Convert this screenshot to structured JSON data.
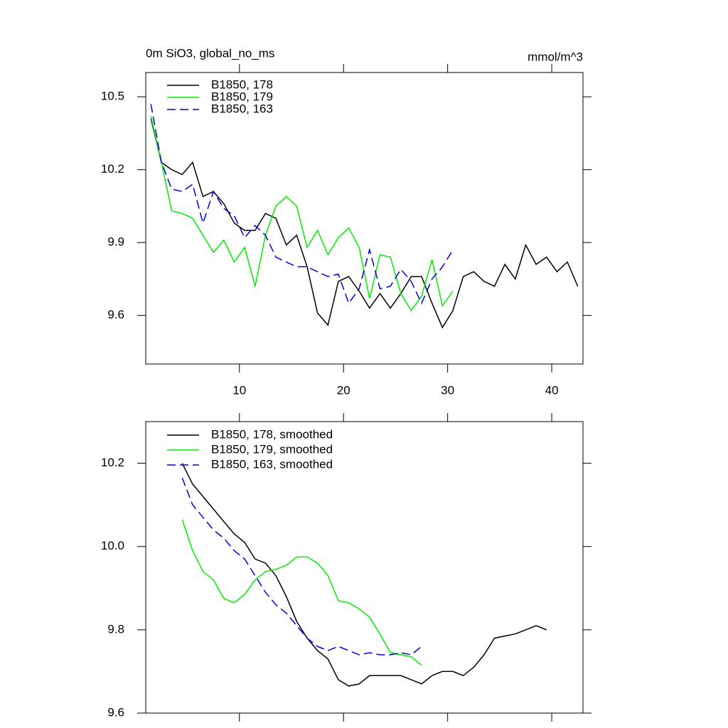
{
  "chart_data": [
    {
      "type": "line",
      "title": "0m SiO3, global_no_ms",
      "units": "mmol/m^3",
      "xlim": [
        1,
        43
      ],
      "xticks": [
        10,
        20,
        30,
        40
      ],
      "ylim": [
        9.4,
        10.6
      ],
      "yticks": [
        9.6,
        9.9,
        10.2,
        10.5
      ],
      "series": [
        {
          "name": "B1850, 178",
          "color": "#000000",
          "dash": false,
          "x": [
            1.5,
            2.5,
            3.5,
            4.5,
            5.5,
            6.5,
            7.5,
            8.5,
            9.5,
            10.5,
            11.5,
            12.5,
            13.5,
            14.5,
            15.5,
            16.5,
            17.5,
            18.5,
            19.5,
            20.5,
            21.5,
            22.5,
            23.5,
            24.5,
            25.5,
            26.5,
            27.5,
            28.5,
            29.5,
            30.5,
            31.5,
            32.5,
            33.5,
            34.5,
            35.5,
            36.5,
            37.5,
            38.5,
            39.5,
            40.5,
            41.5,
            42.5
          ],
          "values": [
            10.41,
            10.23,
            10.2,
            10.18,
            10.23,
            10.09,
            10.11,
            10.06,
            9.98,
            9.95,
            9.95,
            10.02,
            10.0,
            9.89,
            9.93,
            9.8,
            9.61,
            9.56,
            9.74,
            9.76,
            9.7,
            9.63,
            9.69,
            9.63,
            9.69,
            9.76,
            9.76,
            9.65,
            9.55,
            9.62,
            9.76,
            9.78,
            9.74,
            9.72,
            9.81,
            9.75,
            9.89,
            9.81,
            9.84,
            9.78,
            9.82,
            9.72
          ]
        },
        {
          "name": "B1850, 179",
          "color": "#00ee00",
          "dash": false,
          "x": [
            1.5,
            2.5,
            3.5,
            4.5,
            5.5,
            6.5,
            7.5,
            8.5,
            9.5,
            10.5,
            11.5,
            12.5,
            13.5,
            14.5,
            15.5,
            16.5,
            17.5,
            18.5,
            19.5,
            20.5,
            21.5,
            22.5,
            23.5,
            24.5,
            25.5,
            26.5,
            27.5,
            28.5,
            29.5,
            30.5
          ],
          "values": [
            10.42,
            10.23,
            10.03,
            10.02,
            10.0,
            9.93,
            9.86,
            9.91,
            9.82,
            9.88,
            9.72,
            9.93,
            10.05,
            10.09,
            10.05,
            9.88,
            9.95,
            9.85,
            9.92,
            9.96,
            9.88,
            9.67,
            9.85,
            9.84,
            9.69,
            9.62,
            9.68,
            9.83,
            9.64,
            9.7
          ]
        },
        {
          "name": "B1850, 163",
          "color": "#0000dd",
          "dash": true,
          "x": [
            1.5,
            2.5,
            3.5,
            4.5,
            5.5,
            6.5,
            7.5,
            8.5,
            9.5,
            10.5,
            11.5,
            12.5,
            13.5,
            14.5,
            15.5,
            16.5,
            17.5,
            18.5,
            19.5,
            20.5,
            21.5,
            22.5,
            23.5,
            24.5,
            25.5,
            26.5,
            27.5,
            28.5,
            29.5,
            30.5
          ],
          "values": [
            10.47,
            10.23,
            10.12,
            10.11,
            10.14,
            9.98,
            10.11,
            10.04,
            10.01,
            9.92,
            9.97,
            9.93,
            9.84,
            9.82,
            9.8,
            9.8,
            9.78,
            9.76,
            9.77,
            9.65,
            9.71,
            9.87,
            9.71,
            9.72,
            9.79,
            9.74,
            9.65,
            9.75,
            9.8,
            9.87
          ]
        }
      ]
    },
    {
      "type": "line",
      "xlim": [
        1,
        43
      ],
      "xticks": [
        10,
        20,
        30,
        40
      ],
      "ylim": [
        9.6,
        10.3
      ],
      "yticks": [
        9.6,
        9.8,
        {
          "value": 10,
          "label": "10.0"
        },
        10.2
      ],
      "series": [
        {
          "name": "B1850, 178, smoothed",
          "color": "#000000",
          "dash": false,
          "x": [
            4.5,
            5.5,
            6.5,
            7.5,
            8.5,
            9.5,
            10.5,
            11.5,
            12.5,
            13.5,
            14.5,
            15.5,
            16.5,
            17.5,
            18.5,
            19.5,
            20.5,
            21.5,
            22.5,
            23.5,
            24.5,
            25.5,
            26.5,
            27.5,
            28.5,
            29.5,
            30.5,
            31.5,
            32.5,
            33.5,
            34.5,
            35.5,
            36.5,
            37.5,
            38.5,
            39.5
          ],
          "values": [
            10.2,
            10.15,
            10.12,
            10.09,
            10.06,
            10.03,
            10.01,
            9.97,
            9.96,
            9.93,
            9.88,
            9.82,
            9.78,
            9.75,
            9.73,
            9.68,
            9.665,
            9.67,
            9.69,
            9.69,
            9.69,
            9.69,
            9.68,
            9.67,
            9.69,
            9.7,
            9.7,
            9.69,
            9.71,
            9.74,
            9.78,
            9.785,
            9.79,
            9.8,
            9.81,
            9.8
          ]
        },
        {
          "name": "B1850, 179, smoothed",
          "color": "#00ee00",
          "dash": false,
          "x": [
            4.5,
            5.5,
            6.5,
            7.5,
            8.5,
            9.5,
            10.5,
            11.5,
            12.5,
            13.5,
            14.5,
            15.5,
            16.5,
            17.5,
            18.5,
            19.5,
            20.5,
            21.5,
            22.5,
            23.5,
            24.5,
            25.5,
            26.5,
            27.5
          ],
          "values": [
            10.065,
            9.99,
            9.94,
            9.92,
            9.875,
            9.865,
            9.885,
            9.92,
            9.94,
            9.945,
            9.955,
            9.975,
            9.975,
            9.96,
            9.93,
            9.87,
            9.865,
            9.85,
            9.83,
            9.79,
            9.745,
            9.74,
            9.735,
            9.715
          ]
        },
        {
          "name": "B1850, 163, smoothed",
          "color": "#0000dd",
          "dash": true,
          "x": [
            4.5,
            5.5,
            6.5,
            7.5,
            8.5,
            9.5,
            10.5,
            11.5,
            12.5,
            13.5,
            14.5,
            15.5,
            16.5,
            17.5,
            18.5,
            19.5,
            20.5,
            21.5,
            22.5,
            23.5,
            24.5,
            25.5,
            26.5,
            27.5
          ],
          "values": [
            10.165,
            10.1,
            10.07,
            10.04,
            10.02,
            9.99,
            9.97,
            9.93,
            9.89,
            9.86,
            9.84,
            9.81,
            9.78,
            9.76,
            9.75,
            9.76,
            9.75,
            9.74,
            9.745,
            9.74,
            9.74,
            9.745,
            9.74,
            9.76
          ]
        }
      ]
    }
  ]
}
